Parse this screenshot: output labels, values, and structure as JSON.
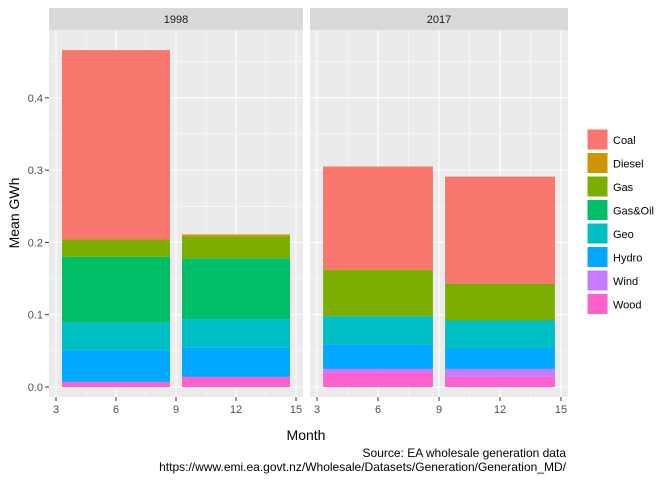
{
  "chart_data": {
    "type": "bar",
    "stacked": true,
    "facet_by": "year",
    "panels": [
      {
        "label": "1998",
        "bars": [
          {
            "month": 6,
            "values": {
              "Coal": 0.262,
              "Diesel": 0.0,
              "Gas": 0.024,
              "Gas&Oil": 0.091,
              "Geo": 0.038,
              "Hydro": 0.044,
              "Wind": 0.0,
              "Wood": 0.007
            }
          },
          {
            "month": 12,
            "values": {
              "Coal": 0.0,
              "Diesel": 0.003,
              "Gas": 0.03,
              "Gas&Oil": 0.084,
              "Geo": 0.039,
              "Hydro": 0.041,
              "Wind": 0.0,
              "Wood": 0.014
            }
          }
        ]
      },
      {
        "label": "2017",
        "bars": [
          {
            "month": 6,
            "values": {
              "Coal": 0.143,
              "Diesel": 0.0,
              "Gas": 0.064,
              "Gas&Oil": 0.0,
              "Geo": 0.039,
              "Hydro": 0.034,
              "Wind": 0.005,
              "Wood": 0.02
            }
          },
          {
            "month": 12,
            "values": {
              "Coal": 0.148,
              "Diesel": 0.0,
              "Gas": 0.051,
              "Gas&Oil": 0.0,
              "Geo": 0.038,
              "Hydro": 0.029,
              "Wind": 0.011,
              "Wood": 0.014
            }
          }
        ]
      }
    ],
    "xlabel": "Month",
    "ylabel": "Mean GWh",
    "xlim": [
      3,
      15
    ],
    "x_ticks": [
      3,
      6,
      9,
      12,
      15
    ],
    "ylim": [
      0,
      0.48
    ],
    "y_ticks": [
      0.0,
      0.1,
      0.2,
      0.3,
      0.4
    ],
    "y_tick_labels": [
      "0.0",
      "0.1",
      "0.2",
      "0.3",
      "0.4"
    ],
    "bar_width_months": 5.4,
    "stack_order_bottom_to_top": [
      "Wood",
      "Wind",
      "Hydro",
      "Geo",
      "Gas&Oil",
      "Gas",
      "Diesel",
      "Coal"
    ],
    "legend": {
      "position": "right",
      "entries": [
        {
          "name": "Coal",
          "color": "#F8766D"
        },
        {
          "name": "Diesel",
          "color": "#CD9600"
        },
        {
          "name": "Gas",
          "color": "#7CAE00"
        },
        {
          "name": "Gas&Oil",
          "color": "#00BE67"
        },
        {
          "name": "Geo",
          "color": "#00BFC4"
        },
        {
          "name": "Hydro",
          "color": "#00A9FF"
        },
        {
          "name": "Wind",
          "color": "#C77CFF"
        },
        {
          "name": "Wood",
          "color": "#FF61CC"
        }
      ]
    },
    "caption": [
      "Source: EA wholesale generation data",
      "https://www.emi.ea.govt.nz/Wholesale/Datasets/Generation/Generation_MD/"
    ],
    "grid": true,
    "panel_background": "#EBEBEB",
    "strip_background": "#D9D9D9"
  }
}
